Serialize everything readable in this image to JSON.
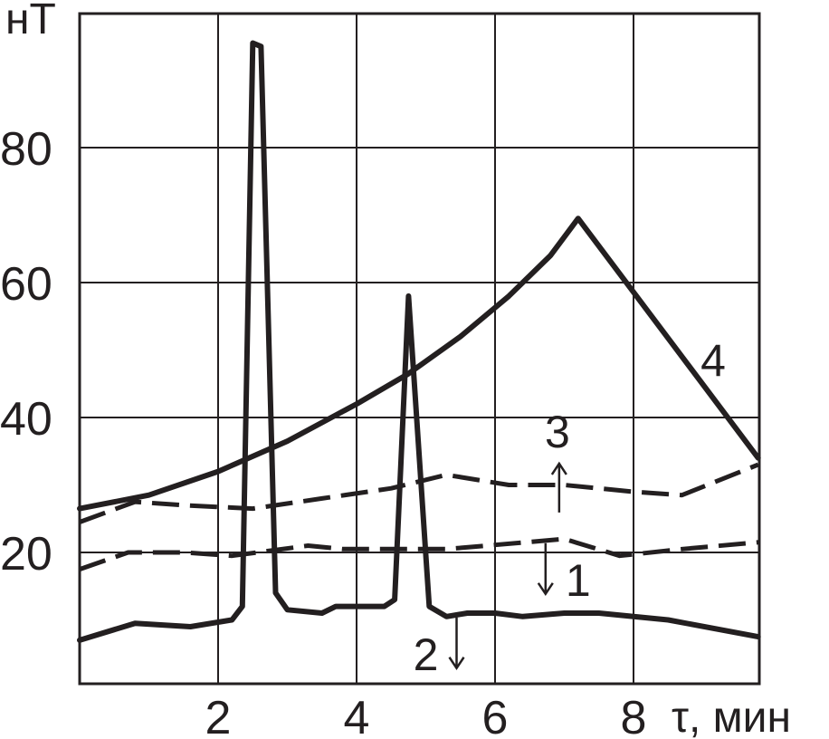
{
  "chart_data": {
    "type": "line",
    "ylabel": "нТ",
    "xlabel": "τ, мин",
    "xlim": [
      0,
      9.8
    ],
    "ylim": [
      0,
      100
    ],
    "xticks": [
      2,
      4,
      6,
      8
    ],
    "yticks": [
      20,
      40,
      60,
      80
    ],
    "x_tick_labels": [
      "2",
      "4",
      "6",
      "8"
    ],
    "y_tick_labels": [
      "20",
      "40",
      "60",
      "80"
    ],
    "grid": true,
    "colors": {
      "line": "#231f20",
      "background": "#ffffff"
    },
    "series": [
      {
        "name": "1",
        "style": "dashed",
        "points": [
          [
            0,
            17.5
          ],
          [
            0.7,
            20.0
          ],
          [
            1.5,
            20.0
          ],
          [
            2.2,
            19.5
          ],
          [
            3.3,
            21.0
          ],
          [
            3.8,
            20.5
          ],
          [
            5.3,
            20.5
          ],
          [
            7.0,
            22.0
          ],
          [
            7.8,
            19.5
          ],
          [
            8.7,
            20.5
          ],
          [
            9.8,
            21.5
          ]
        ]
      },
      {
        "name": "2",
        "style": "solid",
        "points": [
          [
            0,
            7.0
          ],
          [
            0.8,
            9.5
          ],
          [
            1.6,
            9.0
          ],
          [
            2.2,
            10.0
          ],
          [
            2.35,
            12.0
          ],
          [
            2.5,
            95.5
          ],
          [
            2.62,
            95.0
          ],
          [
            2.83,
            14.0
          ],
          [
            3.0,
            11.5
          ],
          [
            3.5,
            11.0
          ],
          [
            3.7,
            12.0
          ],
          [
            4.4,
            12.0
          ],
          [
            4.55,
            13.0
          ],
          [
            4.75,
            58.0
          ],
          [
            5.05,
            12.0
          ],
          [
            5.3,
            10.5
          ],
          [
            5.6,
            11.0
          ],
          [
            6.0,
            11.0
          ],
          [
            6.4,
            10.5
          ],
          [
            7.0,
            11.0
          ],
          [
            7.5,
            11.0
          ],
          [
            8.5,
            10.0
          ],
          [
            9.8,
            7.5
          ]
        ]
      },
      {
        "name": "3",
        "style": "dashed",
        "points": [
          [
            0,
            24.5
          ],
          [
            0.8,
            27.5
          ],
          [
            1.5,
            27.0
          ],
          [
            2.5,
            26.5
          ],
          [
            3.5,
            28.0
          ],
          [
            4.5,
            29.5
          ],
          [
            5.3,
            31.5
          ],
          [
            6.2,
            30.0
          ],
          [
            7.0,
            30.0
          ],
          [
            8.0,
            29.0
          ],
          [
            8.7,
            28.5
          ],
          [
            9.8,
            33.0
          ]
        ]
      },
      {
        "name": "4",
        "style": "solid",
        "points": [
          [
            0,
            26.5
          ],
          [
            1.0,
            28.5
          ],
          [
            2.0,
            32.0
          ],
          [
            3.0,
            36.5
          ],
          [
            4.0,
            42.0
          ],
          [
            4.75,
            46.5
          ],
          [
            5.5,
            52.0
          ],
          [
            6.2,
            58.0
          ],
          [
            6.8,
            64.0
          ],
          [
            7.2,
            69.5
          ],
          [
            9.8,
            34.0
          ]
        ]
      }
    ],
    "annotations": [
      {
        "text": "1",
        "arrow": "down",
        "x": 7.2,
        "y": 16.0
      },
      {
        "text": "2",
        "arrow": "down",
        "x": 5.0,
        "y": 5.0
      },
      {
        "text": "3",
        "arrow": "up",
        "x": 6.9,
        "y": 38.0
      },
      {
        "text": "4",
        "x": 9.15,
        "y": 48.5
      }
    ]
  }
}
